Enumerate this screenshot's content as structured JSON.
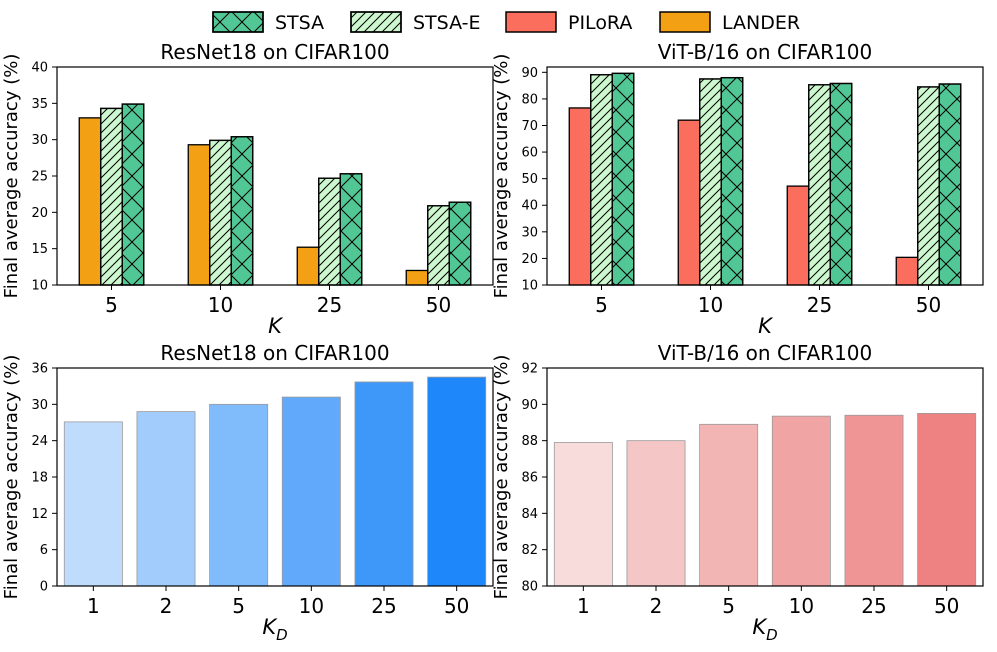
{
  "legend": {
    "items": [
      {
        "label": "STSA",
        "color": "#52c796",
        "hatch": "cross"
      },
      {
        "label": "STSA-E",
        "color": "#cdf7cf",
        "hatch": "diag"
      },
      {
        "label": "PILoRA",
        "color": "#fb6e5e",
        "hatch": "none"
      },
      {
        "label": "LANDER",
        "color": "#f3a014",
        "hatch": "none"
      }
    ]
  },
  "chart_data": [
    {
      "type": "bar",
      "title": "ResNet18 on CIFAR100",
      "xlabel": "K",
      "ylabel": "Final average accuracy (%)",
      "categories": [
        "5",
        "10",
        "25",
        "50"
      ],
      "ylim": [
        10,
        40
      ],
      "yticks": [
        10,
        15,
        20,
        25,
        30,
        35,
        40
      ],
      "series": [
        {
          "name": "LANDER",
          "color": "#f3a014",
          "hatch": "none",
          "values": [
            33.0,
            29.3,
            15.2,
            12.0
          ]
        },
        {
          "name": "STSA-E",
          "color": "#cdf7cf",
          "hatch": "diag",
          "values": [
            34.3,
            29.9,
            24.7,
            20.9
          ]
        },
        {
          "name": "STSA",
          "color": "#52c796",
          "hatch": "cross",
          "values": [
            34.9,
            30.4,
            25.3,
            21.4
          ]
        }
      ]
    },
    {
      "type": "bar",
      "title": "ViT-B/16 on CIFAR100",
      "xlabel": "K",
      "ylabel": "Final average accuracy (%)",
      "categories": [
        "5",
        "10",
        "25",
        "50"
      ],
      "ylim": [
        10,
        92
      ],
      "yticks": [
        10,
        20,
        30,
        40,
        50,
        60,
        70,
        80,
        90
      ],
      "series": [
        {
          "name": "PILoRA",
          "color": "#fb6e5e",
          "hatch": "none",
          "values": [
            76.6,
            72.0,
            47.2,
            20.4
          ]
        },
        {
          "name": "STSA-E",
          "color": "#cdf7cf",
          "hatch": "diag",
          "values": [
            89.1,
            87.5,
            85.3,
            84.5
          ]
        },
        {
          "name": "STSA",
          "color": "#52c796",
          "hatch": "cross",
          "values": [
            89.6,
            88.0,
            85.8,
            85.6
          ]
        }
      ]
    },
    {
      "type": "bar",
      "title": "ResNet18 on CIFAR100",
      "xlabel": "K_D",
      "ylabel": "Final average accuracy (%)",
      "categories": [
        "1",
        "2",
        "5",
        "10",
        "25",
        "50"
      ],
      "ylim": [
        0,
        36
      ],
      "yticks": [
        0,
        6,
        12,
        18,
        24,
        30,
        36
      ],
      "values": [
        27.1,
        28.8,
        30.0,
        31.2,
        33.7,
        34.5
      ],
      "colors": [
        "#bfdcfc",
        "#a2ccfc",
        "#80bbfb",
        "#61aafb",
        "#3e98fa",
        "#1e88fa"
      ]
    },
    {
      "type": "bar",
      "title": "ViT-B/16 on CIFAR100",
      "xlabel": "K_D",
      "ylabel": "Final average accuracy (%)",
      "categories": [
        "1",
        "2",
        "5",
        "10",
        "25",
        "50"
      ],
      "ylim": [
        80,
        92
      ],
      "yticks": [
        80,
        82,
        84,
        86,
        88,
        90,
        92
      ],
      "values": [
        87.9,
        88.0,
        88.9,
        89.35,
        89.4,
        89.5
      ],
      "colors": [
        "#f8dcdc",
        "#f5c6c6",
        "#f3b4b4",
        "#f1a4a4",
        "#f09595",
        "#ee8181"
      ]
    }
  ]
}
